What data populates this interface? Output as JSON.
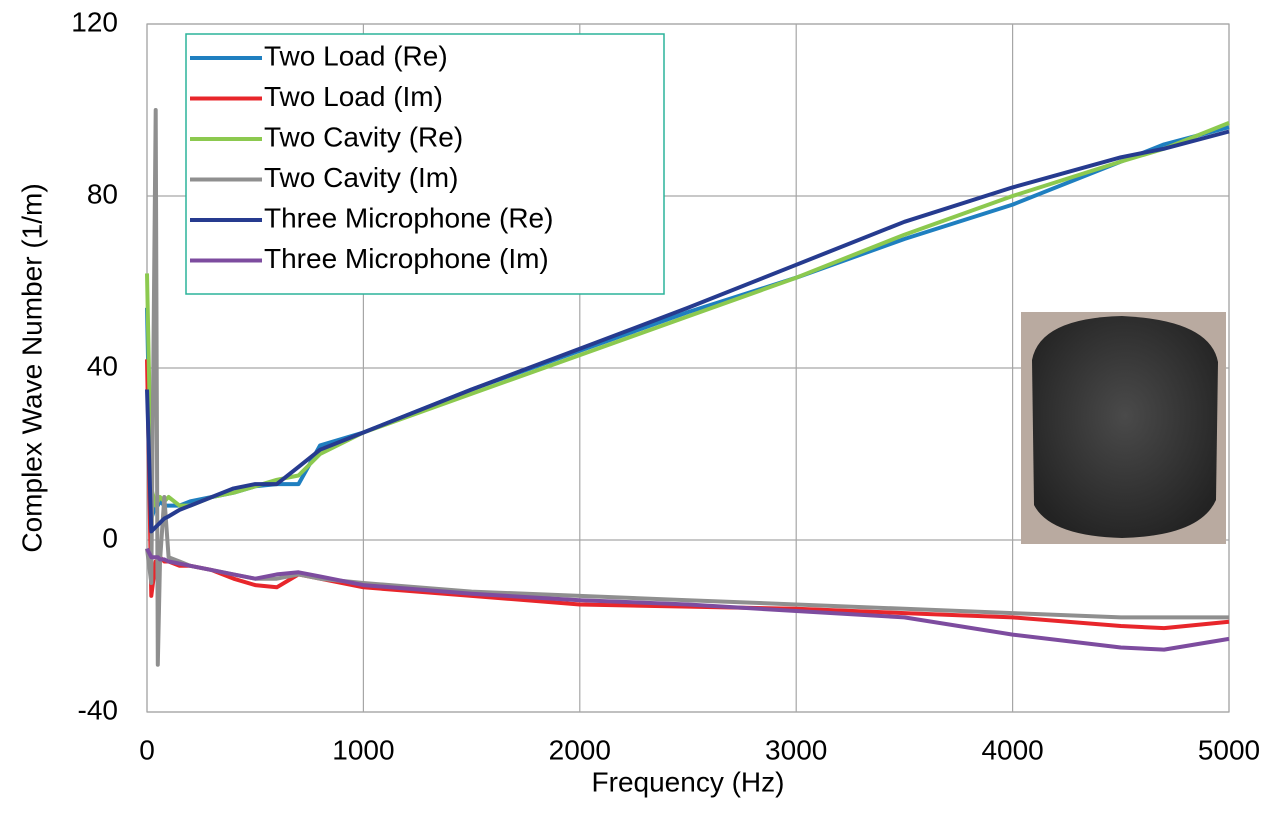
{
  "chart_data": {
    "type": "line",
    "xlabel": "Frequency (Hz)",
    "ylabel": "Complex Wave Number (1/m)",
    "x": [
      0,
      20,
      40,
      50,
      60,
      80,
      100,
      150,
      200,
      300,
      400,
      500,
      600,
      700,
      800,
      1000,
      1500,
      2000,
      2500,
      3000,
      3500,
      4000,
      4500,
      4700,
      5000
    ],
    "series": [
      {
        "name": "Two Load (Re)",
        "color": "#1f7fc0",
        "values": [
          54,
          5,
          8,
          8,
          9,
          8,
          8,
          8,
          9,
          10,
          11,
          12.5,
          13,
          13,
          22,
          25,
          35,
          44,
          53,
          61,
          70,
          78,
          88,
          92,
          96
        ]
      },
      {
        "name": "Two Load (Im)",
        "color": "#e8262b",
        "values": [
          42,
          -13,
          -5,
          -5,
          -4,
          -5,
          -5,
          -6,
          -6,
          -7,
          -9,
          -10.5,
          -11,
          -8,
          -9,
          -11,
          -13,
          -15,
          -15.5,
          -16,
          -17,
          -18,
          -20,
          -20.5,
          -19
        ]
      },
      {
        "name": "Two Cavity (Re)",
        "color": "#8cc94f",
        "values": [
          62,
          12,
          8,
          9,
          10,
          9,
          10,
          8,
          8,
          10,
          11,
          12.5,
          14,
          15,
          20,
          25,
          34,
          43,
          52,
          61,
          71,
          80,
          88,
          91,
          97
        ]
      },
      {
        "name": "Two Cavity (Im)",
        "color": "#8f8f8f",
        "values": [
          -2,
          -10,
          100,
          -29,
          -5,
          10,
          -4,
          -5,
          -6,
          -7,
          -8,
          -9,
          -9,
          -8,
          -9,
          -10,
          -12,
          -13,
          -14,
          -15,
          -16,
          -17,
          -18,
          -18,
          -18
        ]
      },
      {
        "name": "Three Microphone (Re)",
        "color": "#263b8f",
        "values": [
          35,
          2,
          3,
          3.5,
          4,
          5,
          5.5,
          7,
          8,
          10,
          12,
          13,
          13,
          17,
          21,
          25,
          35,
          44.5,
          54,
          64,
          74,
          82,
          89,
          91,
          95
        ]
      },
      {
        "name": "Three Microphone (Im)",
        "color": "#7d4c9f",
        "values": [
          -2,
          -4,
          -4,
          -4,
          -4.5,
          -4.5,
          -5,
          -5.5,
          -6,
          -7,
          -8,
          -9,
          -8,
          -7.5,
          -8.5,
          -10.5,
          -12.5,
          -14,
          -15,
          -16.5,
          -18,
          -22,
          -25,
          -25.5,
          -23
        ]
      }
    ],
    "xlim": [
      0,
      5000
    ],
    "xticks": [
      0,
      1000,
      2000,
      3000,
      4000,
      5000
    ],
    "ylim": [
      -40,
      120
    ],
    "yticks": [
      -40,
      0,
      40,
      80,
      120
    ],
    "grid": true,
    "legend": "upper left"
  }
}
